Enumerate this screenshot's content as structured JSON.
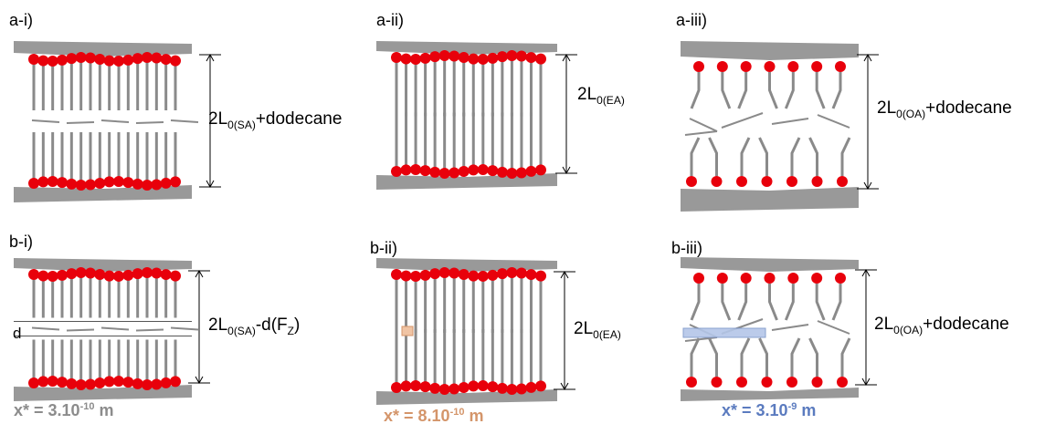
{
  "panels": [
    {
      "label": "a-i)",
      "dimension": [
        {
          "t": "2L"
        },
        {
          "sub": "0(SA)"
        },
        {
          "t": "+dodecane"
        }
      ]
    },
    {
      "label": "a-ii)",
      "dimension": [
        {
          "t": "2L"
        },
        {
          "sub": "0(EA)"
        }
      ]
    },
    {
      "label": "a-iii)",
      "dimension": [
        {
          "t": "2L"
        },
        {
          "sub": "0(OA)"
        },
        {
          "t": "+dodecane"
        }
      ]
    },
    {
      "label": "b-i)",
      "dimension": [
        {
          "t": "2L"
        },
        {
          "sub": "0(SA)"
        },
        {
          "t": "-d(F"
        },
        {
          "sub": "Z"
        },
        {
          "t": ")"
        }
      ]
    },
    {
      "label": "b-ii)",
      "dimension": [
        {
          "t": "2L"
        },
        {
          "sub": "0(EA)"
        }
      ]
    },
    {
      "label": "b-iii)",
      "dimension": [
        {
          "t": "2L"
        },
        {
          "sub": "0(OA)"
        },
        {
          "t": "+dodecane"
        }
      ]
    }
  ],
  "d_label": "d",
  "x_star": [
    {
      "color": "#8c8c8c",
      "segments": [
        {
          "t": "x* = 3.10"
        },
        {
          "sup": "-10"
        },
        {
          "t": " m"
        }
      ]
    },
    {
      "color": "#d4956a",
      "segments": [
        {
          "t": "x* = 8.10"
        },
        {
          "sup": "-10"
        },
        {
          "t": " m"
        }
      ]
    },
    {
      "color": "#5b7bbf",
      "segments": [
        {
          "t": "x* = 3.10"
        },
        {
          "sup": "-9"
        },
        {
          "t": " m"
        }
      ]
    }
  ]
}
